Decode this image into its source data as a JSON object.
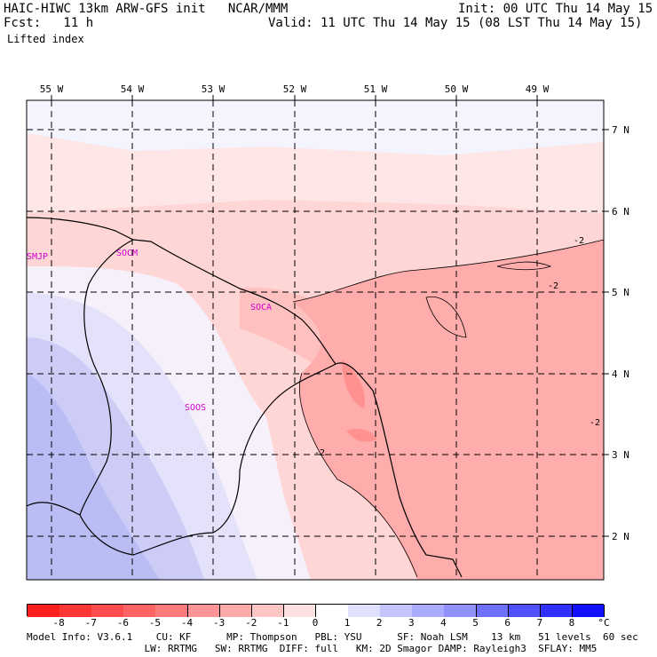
{
  "header": {
    "title": "HAIC-HIWC 13km ARW-GFS init   NCAR/MMM",
    "init": "Init: 00 UTC Thu 14 May 15",
    "fcst": "Fcst:   11 h",
    "valid": "Valid: 11 UTC Thu 14 May 15 (08 LST Thu 14 May 15)",
    "field": "Lifted index"
  },
  "axes": {
    "lon_labels": [
      "55 W",
      "54 W",
      "53 W",
      "52 W",
      "51 W",
      "50 W",
      "49 W"
    ],
    "lat_labels": [
      "7 N",
      "6 N",
      "5 N",
      "4 N",
      "3 N",
      "2 N"
    ]
  },
  "stations": [
    "SMJP",
    "SOCM",
    "SOCA",
    "SOOS"
  ],
  "contour_labels": [
    "-2",
    "-2",
    "-2",
    "-2"
  ],
  "colorbar": {
    "labels": [
      "-8",
      "-7",
      "-6",
      "-5",
      "-4",
      "-3",
      "-2",
      "-1",
      "0",
      "1",
      "2",
      "3",
      "4",
      "5",
      "6",
      "7",
      "8"
    ],
    "unit": "°C",
    "colors": [
      "#ff2020",
      "#ff3636",
      "#ff4c4c",
      "#ff6464",
      "#ff7a7a",
      "#ff9494",
      "#ffaaaa",
      "#ffc4c4",
      "#ffe0e0",
      "#ffffff",
      "#e0e0ff",
      "#c4c4ff",
      "#aaaaff",
      "#9090ff",
      "#7070ff",
      "#5050ff",
      "#3030ff",
      "#1010ff"
    ]
  },
  "footer": {
    "line1": "Model Info: V3.6.1    CU: KF      MP: Thompson   PBL: YSU      SF: Noah LSM    13 km   51 levels  60 sec",
    "line2": "                    LW: RRTMG   SW: RRTMG  DIFF: full   KM: 2D Smagor DAMP: Rayleigh3  SFLAY: MM5"
  }
}
